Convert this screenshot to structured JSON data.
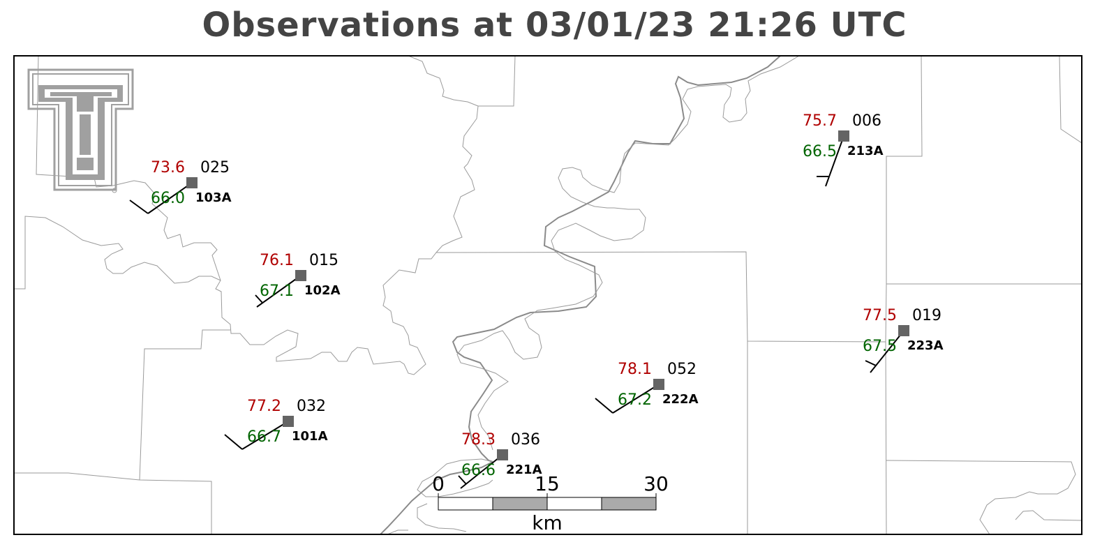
{
  "title": "Observations at 03/01/23 21:26 UTC",
  "colors": {
    "title": "#444444",
    "temperature": "#b00000",
    "dewpoint": "#006400",
    "pressure": "#000000",
    "station_marker": "#646464",
    "county_border": "#9a9a9a",
    "river": "#8a8a8a",
    "logo": "#a0a0a0"
  },
  "logo": {
    "name": "texas-tech-double-t-logo"
  },
  "stations": [
    {
      "id": "103A",
      "temp": "73.6",
      "dewpoint": "66.0",
      "pressure": "025"
    },
    {
      "id": "102A",
      "temp": "76.1",
      "dewpoint": "67.1",
      "pressure": "015"
    },
    {
      "id": "101A",
      "temp": "77.2",
      "dewpoint": "66.7",
      "pressure": "032"
    },
    {
      "id": "221A",
      "temp": "78.3",
      "dewpoint": "66.6",
      "pressure": "036"
    },
    {
      "id": "222A",
      "temp": "78.1",
      "dewpoint": "67.2",
      "pressure": "052"
    },
    {
      "id": "213A",
      "temp": "75.7",
      "dewpoint": "66.5",
      "pressure": "006"
    },
    {
      "id": "223A",
      "temp": "77.5",
      "dewpoint": "67.5",
      "pressure": "019"
    }
  ],
  "scale_bar": {
    "ticks": [
      "0",
      "15",
      "30"
    ],
    "unit": "km"
  }
}
